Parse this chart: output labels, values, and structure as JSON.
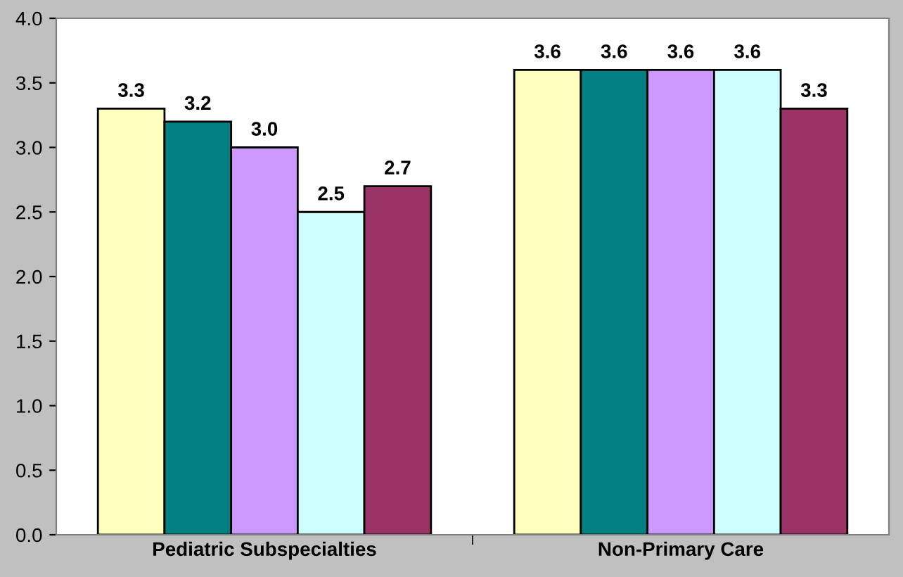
{
  "chart_data": {
    "type": "bar",
    "categories": [
      "Pediatric Subspecialties",
      "Non-Primary Care"
    ],
    "series": [
      {
        "color": "#ffffc0",
        "values": [
          3.3,
          3.6
        ],
        "value_labels": [
          "3.3",
          "3.6"
        ]
      },
      {
        "color": "#008080",
        "values": [
          3.2,
          3.6
        ],
        "value_labels": [
          "3.2",
          "3.6"
        ]
      },
      {
        "color": "#cc99ff",
        "values": [
          3.0,
          3.6
        ],
        "value_labels": [
          "3.0",
          "3.6"
        ]
      },
      {
        "color": "#ccffff",
        "values": [
          2.5,
          3.6
        ],
        "value_labels": [
          "2.5",
          "3.6"
        ]
      },
      {
        "color": "#993366",
        "values": [
          2.7,
          3.3
        ],
        "value_labels": [
          "2.7",
          "3.3"
        ]
      }
    ],
    "ylim": [
      0,
      4
    ],
    "yticks": [
      {
        "value": 0,
        "label": "0.0"
      },
      {
        "value": 0.5,
        "label": "0.5"
      },
      {
        "value": 1,
        "label": "1.0"
      },
      {
        "value": 1.5,
        "label": "1.5"
      },
      {
        "value": 2,
        "label": "2.0"
      },
      {
        "value": 2.5,
        "label": "2.5"
      },
      {
        "value": 3,
        "label": "3.0"
      },
      {
        "value": 3.5,
        "label": "3.5"
      },
      {
        "value": 4,
        "label": "4.0"
      }
    ],
    "grid": false,
    "legend": false
  }
}
